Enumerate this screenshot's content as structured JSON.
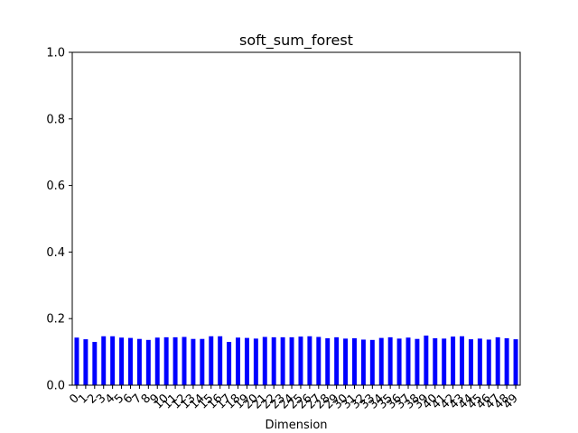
{
  "chart_data": {
    "type": "bar",
    "title": "soft_sum_forest",
    "xlabel": "Dimension",
    "ylabel": "",
    "ylim": [
      0,
      1.0
    ],
    "yticks": [
      "0.0",
      "0.2",
      "0.4",
      "0.6",
      "0.8",
      "1.0"
    ],
    "categories": [
      "0",
      "1",
      "2",
      "3",
      "4",
      "5",
      "6",
      "7",
      "8",
      "9",
      "10",
      "11",
      "12",
      "13",
      "14",
      "15",
      "16",
      "17",
      "18",
      "19",
      "20",
      "21",
      "22",
      "23",
      "24",
      "25",
      "26",
      "27",
      "28",
      "29",
      "30",
      "31",
      "32",
      "33",
      "34",
      "35",
      "36",
      "37",
      "38",
      "39",
      "40",
      "41",
      "42",
      "43",
      "44",
      "45",
      "46",
      "47",
      "48",
      "49"
    ],
    "values": [
      0.143,
      0.138,
      0.13,
      0.147,
      0.147,
      0.143,
      0.142,
      0.139,
      0.136,
      0.143,
      0.144,
      0.144,
      0.145,
      0.139,
      0.139,
      0.147,
      0.147,
      0.13,
      0.143,
      0.142,
      0.14,
      0.145,
      0.144,
      0.144,
      0.144,
      0.146,
      0.147,
      0.145,
      0.141,
      0.144,
      0.14,
      0.141,
      0.137,
      0.136,
      0.142,
      0.144,
      0.14,
      0.143,
      0.139,
      0.149,
      0.141,
      0.14,
      0.146,
      0.147,
      0.138,
      0.14,
      0.137,
      0.144,
      0.141,
      0.138
    ],
    "bar_color": "#0000ff",
    "grid": false
  }
}
